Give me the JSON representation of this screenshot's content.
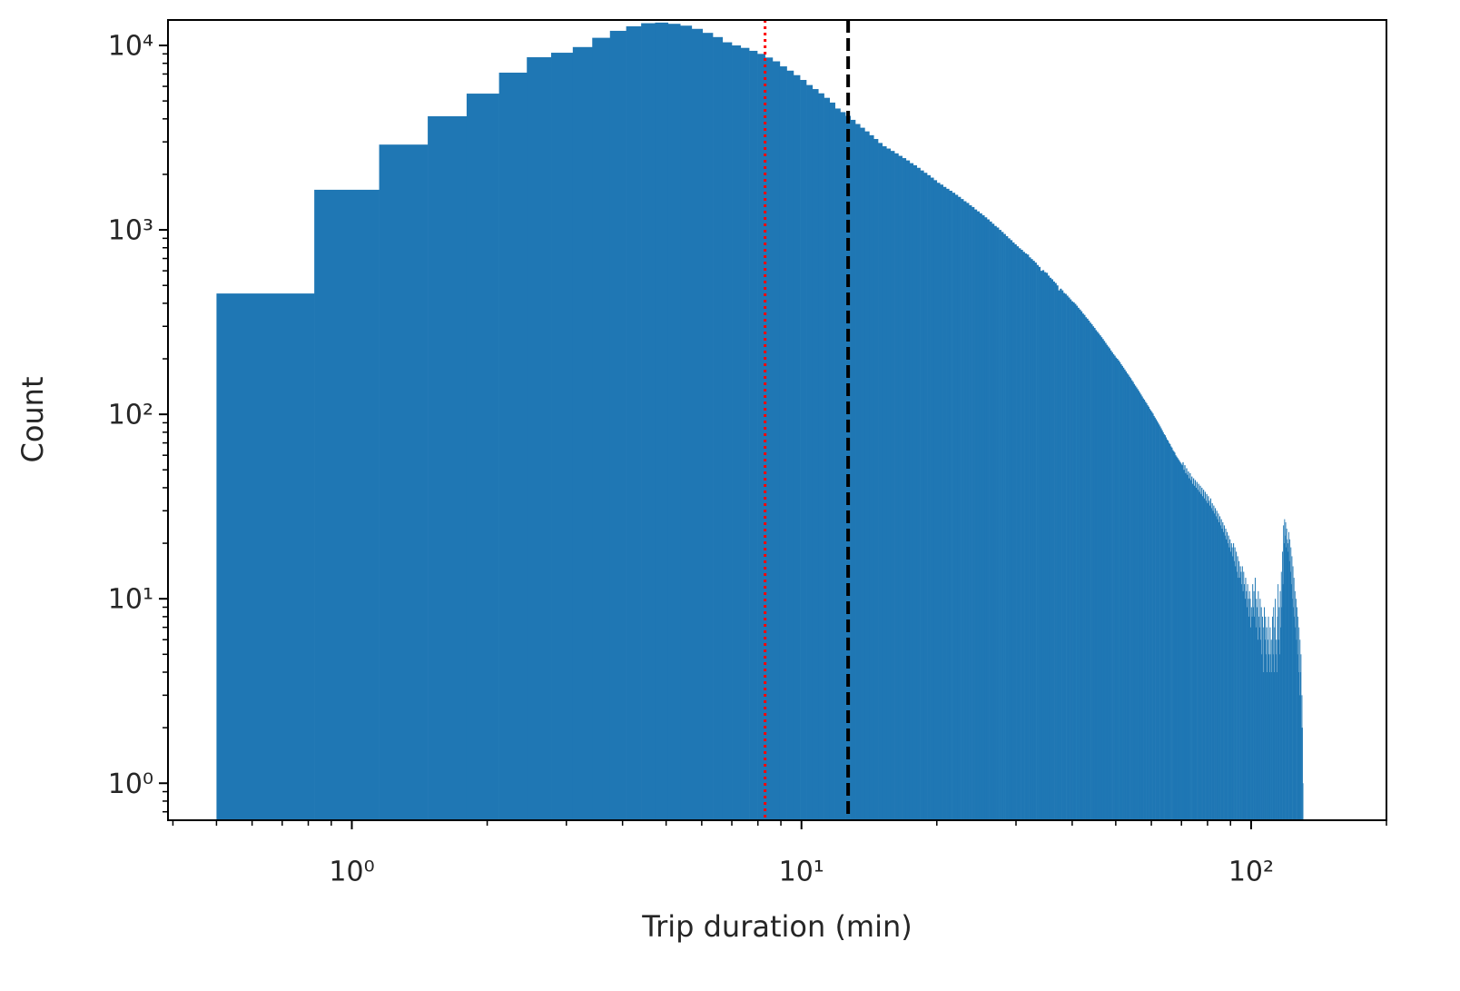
{
  "chart_data": {
    "type": "histogram",
    "xlabel": "Trip duration (min)",
    "ylabel": "Count",
    "color": "#1f77b4",
    "xscale": "log",
    "yscale": "log",
    "xlim": [
      0.39,
      200
    ],
    "ylim": [
      0.63,
      13740
    ],
    "xticks": [
      {
        "value": 1,
        "label": "10⁰"
      },
      {
        "value": 10,
        "label": "10¹"
      },
      {
        "value": 100,
        "label": "10²"
      }
    ],
    "xminorticks": [
      0.4,
      0.5,
      0.6,
      0.7,
      0.8,
      0.9,
      2,
      3,
      4,
      5,
      6,
      7,
      8,
      9,
      20,
      30,
      40,
      50,
      60,
      70,
      80,
      90,
      200
    ],
    "yticks": [
      {
        "value": 1,
        "label": "10⁰"
      },
      {
        "value": 10,
        "label": "10¹"
      },
      {
        "value": 100,
        "label": "10²"
      },
      {
        "value": 1000,
        "label": "10³"
      },
      {
        "value": 10000,
        "label": "10⁴"
      }
    ],
    "yminorticks": [
      0.7,
      0.8,
      0.9,
      2,
      3,
      4,
      5,
      6,
      7,
      8,
      9,
      20,
      30,
      40,
      50,
      60,
      70,
      80,
      90,
      200,
      300,
      400,
      500,
      600,
      700,
      800,
      900,
      2000,
      3000,
      4000,
      5000,
      6000,
      7000,
      8000,
      9000
    ],
    "vlines": [
      {
        "x": 8.3,
        "color": "#ff0000",
        "style": "dotted"
      },
      {
        "x": 12.7,
        "color": "#000000",
        "style": "dashed"
      }
    ],
    "bins": [
      0.5,
      0.825,
      1.15,
      1.475,
      1.8,
      2.125,
      2.45,
      2.775,
      3.1,
      3.425,
      3.75,
      4.075,
      4.4,
      4.725,
      5.05,
      5.375,
      5.7,
      6.025,
      6.35,
      6.675,
      7,
      7.325,
      7.65,
      7.975,
      8.3,
      8.625,
      8.95,
      9.275,
      9.6,
      9.925,
      10.25,
      10.575,
      10.9,
      11.225,
      11.55,
      11.875,
      12.2,
      12.525,
      12.85,
      13.175,
      13.5,
      13.825,
      14.15,
      14.475,
      14.8,
      15.125,
      15.45,
      15.775,
      16.1,
      16.425,
      16.75,
      17.075,
      17.4,
      17.725,
      18.05,
      18.375,
      18.7,
      19.025,
      19.35,
      19.675,
      20,
      20.325,
      20.65,
      20.975,
      21.3,
      21.625,
      21.95,
      22.275,
      22.6,
      22.925,
      23.25,
      23.575,
      23.9,
      24.225,
      24.55,
      24.875,
      25.2,
      25.525,
      25.85,
      26.175,
      26.5,
      26.825,
      27.15,
      27.475,
      27.8,
      28.125,
      28.45,
      28.775,
      29.1,
      29.425,
      29.75,
      30.075,
      30.4,
      30.725,
      31.05,
      31.375,
      31.7,
      32.025,
      32.35,
      32.675,
      33,
      33.325,
      33.65,
      33.975,
      34.3,
      34.625,
      34.95,
      35.275,
      35.6,
      35.925,
      36.25,
      36.575,
      36.9,
      37.225,
      37.55,
      37.875,
      38.2,
      38.525,
      38.85,
      39.175,
      39.5,
      39.825,
      40.15,
      40.475,
      40.8,
      41.125,
      41.45,
      41.775,
      42.1,
      42.425,
      42.75,
      43.075,
      43.4,
      43.725,
      44.05,
      44.375,
      44.7,
      45.025,
      45.35,
      45.675,
      46,
      46.325,
      46.65,
      46.975,
      47.3,
      47.625,
      47.95,
      48.275,
      48.6,
      48.925,
      49.25,
      49.575,
      49.9,
      50.225,
      50.55,
      50.875,
      51.2,
      51.525,
      51.85,
      52.175,
      52.5,
      52.825,
      53.15,
      53.475,
      53.8,
      54.125,
      54.45,
      54.775,
      55.1,
      55.425,
      55.75,
      56.075,
      56.4,
      56.725,
      57.05,
      57.375,
      57.7,
      58.025,
      58.35,
      58.675,
      59,
      59.325,
      59.65,
      59.975,
      60.3,
      60.625,
      60.95,
      61.275,
      61.6,
      61.925,
      62.25,
      62.575,
      62.9,
      63.225,
      63.55,
      63.875,
      64.2,
      64.525,
      64.85,
      65.175,
      65.5,
      65.825,
      66.15,
      66.475,
      66.8,
      67.125,
      67.45,
      67.775,
      68.1,
      68.425,
      68.75,
      69.075,
      69.4,
      69.725,
      70.05,
      70.375,
      70.7,
      71.025,
      71.35,
      71.675,
      72,
      72.325,
      72.65,
      72.975,
      73.3,
      73.625,
      73.95,
      74.275,
      74.6,
      74.925,
      75.25,
      75.575,
      75.9,
      76.225,
      76.55,
      76.875,
      77.2,
      77.525,
      77.85,
      78.175,
      78.5,
      78.825,
      79.15,
      79.475,
      79.8,
      80.125,
      80.45,
      80.775,
      81.1,
      81.425,
      81.75,
      82.075,
      82.4,
      82.725,
      83.05,
      83.375,
      83.7,
      84.025,
      84.35,
      84.675,
      85,
      85.325,
      85.65,
      85.975,
      86.3,
      86.625,
      86.95,
      87.275,
      87.6,
      87.925,
      88.25,
      88.575,
      88.9,
      89.225,
      89.55,
      89.875,
      90.2,
      90.525,
      90.85,
      91.175,
      91.5,
      91.825,
      92.15,
      92.475,
      92.8,
      93.125,
      93.45,
      93.775,
      94.1,
      94.425,
      94.75,
      95.075,
      95.4,
      95.725,
      96.05,
      96.375,
      96.7,
      97.025,
      97.35,
      97.675,
      98,
      98.325,
      98.65,
      98.975,
      99.3,
      99.625,
      99.95,
      100.275,
      100.6,
      100.925,
      101.25,
      101.575,
      101.9,
      102.225,
      102.55,
      102.875,
      103.2,
      103.525,
      103.85,
      104.175,
      104.5,
      104.825,
      105.15,
      105.475,
      105.8,
      106.125,
      106.45,
      106.775,
      107.1,
      107.425,
      107.75,
      108.075,
      108.4,
      108.725,
      109.05,
      109.375,
      109.7,
      110.025,
      110.35,
      110.675,
      111,
      111.325,
      111.65,
      111.975,
      112.3,
      112.625,
      112.95,
      113.275,
      113.6,
      113.925,
      114.25,
      114.575,
      114.9,
      115.225,
      115.55,
      115.875,
      116.2,
      116.525,
      116.85,
      117.175,
      117.5,
      117.825,
      118.15,
      118.475,
      118.8,
      119.125,
      119.45,
      119.775,
      120.1,
      120.425,
      120.75,
      121.075,
      121.4,
      121.725,
      122.05,
      122.375,
      122.7,
      123.025,
      123.35,
      123.675,
      124,
      124.325,
      124.65,
      124.975,
      125.3,
      125.625,
      125.95,
      126.275,
      126.6,
      126.925,
      127.25,
      127.575,
      127.9,
      128.225,
      128.55,
      128.875,
      129.2,
      129.525,
      129.85,
      130.175,
      130.5
    ],
    "values": [
      452,
      1650,
      2900,
      4130,
      5480,
      7120,
      8630,
      9130,
      9800,
      11000,
      12000,
      12700,
      13200,
      13300,
      13100,
      12800,
      12300,
      11700,
      11100,
      10400,
      10000,
      9700,
      9350,
      9000,
      8600,
      8200,
      7700,
      7300,
      6900,
      6500,
      6100,
      5800,
      5500,
      5200,
      4900,
      4550,
      4350,
      4150,
      3950,
      3750,
      3580,
      3420,
      3260,
      3110,
      2960,
      2840,
      2760,
      2680,
      2600,
      2520,
      2450,
      2380,
      2300,
      2240,
      2170,
      2100,
      2040,
      1980,
      1920,
      1860,
      1800,
      1760,
      1710,
      1670,
      1630,
      1590,
      1550,
      1510,
      1470,
      1430,
      1400,
      1360,
      1330,
      1290,
      1260,
      1230,
      1200,
      1170,
      1140,
      1110,
      1080,
      1050,
      1030,
      1000,
      975,
      950,
      925,
      900,
      880,
      855,
      835,
      815,
      795,
      780,
      760,
      745,
      735,
      710,
      695,
      680,
      665,
      645,
      630,
      600,
      605,
      590,
      585,
      565,
      550,
      540,
      525,
      515,
      500,
      470,
      480,
      470,
      455,
      450,
      440,
      430,
      420,
      410,
      405,
      397,
      388,
      378,
      370,
      362,
      352,
      346,
      336,
      330,
      322,
      314,
      308,
      300,
      294,
      286,
      280,
      274,
      268,
      262,
      256,
      250,
      244,
      238,
      233,
      228,
      222,
      217,
      212,
      208,
      203,
      200,
      196,
      192,
      187,
      183,
      179,
      175,
      171,
      167,
      164,
      160,
      157,
      153,
      150,
      146,
      143,
      140,
      137,
      134,
      131,
      128,
      125,
      122,
      120,
      117,
      115,
      112,
      110,
      107,
      105,
      103,
      101,
      98,
      96,
      94,
      92,
      90,
      88,
      86,
      84,
      82,
      80,
      78,
      77,
      75,
      73,
      72,
      70,
      69,
      67,
      66,
      64,
      63,
      62,
      60,
      59,
      58,
      57,
      56,
      55,
      54,
      53,
      55,
      50,
      53,
      48,
      51,
      47,
      49,
      45,
      48,
      44,
      46,
      42,
      45,
      41,
      44,
      40,
      43,
      39,
      42,
      38,
      41,
      37,
      40,
      36,
      39,
      35,
      38,
      34,
      37,
      33,
      36,
      34,
      32,
      35,
      31,
      33,
      30,
      32,
      29,
      31,
      28,
      30,
      27,
      29,
      26,
      28,
      25,
      27,
      24,
      26,
      23,
      25,
      22,
      24,
      21,
      23,
      20,
      22,
      19,
      21,
      18,
      20,
      19,
      17,
      20,
      16,
      19,
      15,
      18,
      14,
      17,
      13,
      16,
      13,
      15,
      14,
      12,
      15,
      11,
      14,
      12,
      10,
      13,
      11,
      9,
      12,
      10,
      8,
      11,
      10,
      7,
      9,
      8,
      12,
      9,
      11,
      8,
      13,
      7,
      10,
      9,
      6,
      11,
      8,
      7,
      10,
      6,
      9,
      5,
      8,
      7,
      4,
      9,
      6,
      8,
      5,
      7,
      4,
      6,
      8,
      5,
      4,
      7,
      5,
      6,
      4,
      8,
      5,
      9,
      4,
      7,
      10,
      5,
      6,
      4,
      8,
      12,
      6,
      9,
      5,
      11,
      7,
      14,
      9,
      18,
      12,
      25,
      20,
      27,
      22,
      26,
      19,
      24,
      21,
      20,
      18,
      23,
      16,
      21,
      14,
      19,
      12,
      17,
      10,
      15,
      9,
      13,
      8,
      11,
      7,
      10,
      6,
      9,
      5,
      8,
      4,
      7,
      3,
      6,
      4,
      5,
      2,
      3,
      2,
      1
    ]
  }
}
